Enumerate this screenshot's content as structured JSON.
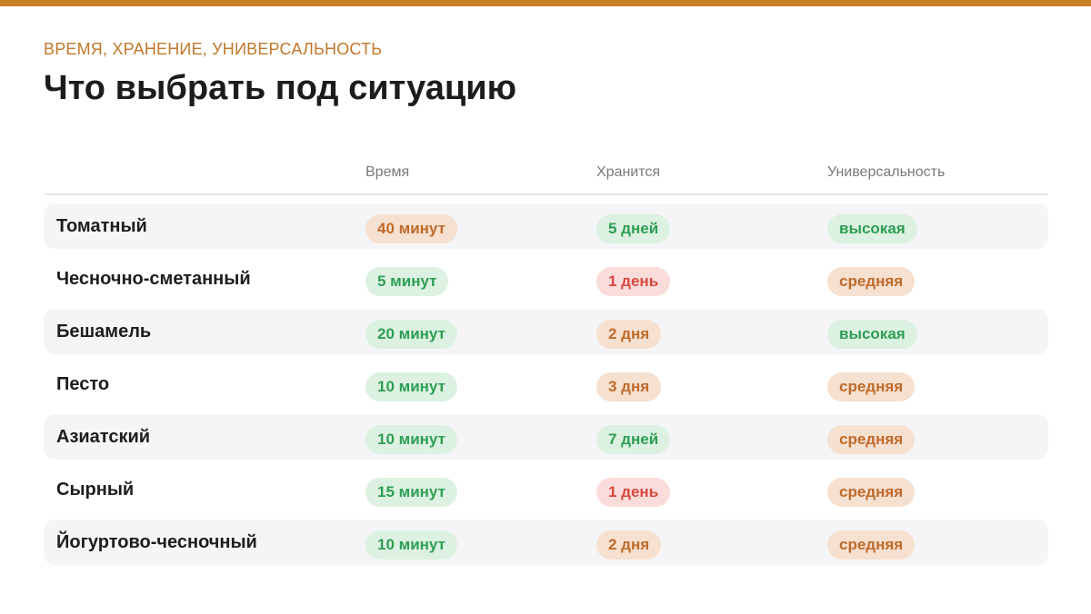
{
  "eyebrow": "ВРЕМЯ, ХРАНЕНИЕ, УНИВЕРСАЛЬНОСТЬ",
  "title": "Что выбрать под ситуацию",
  "columns": [
    "",
    "Время",
    "Хранится",
    "Универсальность"
  ],
  "colors": {
    "accent": "#c9802a",
    "green": "#2e9e54",
    "orange": "#bf6a2b",
    "red": "#d9483f"
  },
  "rows": [
    {
      "name": "Томатный",
      "time": "40 минут",
      "time_status": "orange",
      "storage": "5 дней",
      "storage_status": "green",
      "versatility": "высокая",
      "versatility_status": "green"
    },
    {
      "name": "Чесночно-сметанный",
      "time": "5 минут",
      "time_status": "green",
      "storage": "1 день",
      "storage_status": "red",
      "versatility": "средняя",
      "versatility_status": "orange"
    },
    {
      "name": "Бешамель",
      "time": "20 минут",
      "time_status": "green",
      "storage": "2 дня",
      "storage_status": "orange",
      "versatility": "высокая",
      "versatility_status": "green"
    },
    {
      "name": "Песто",
      "time": "10 минут",
      "time_status": "green",
      "storage": "3 дня",
      "storage_status": "orange",
      "versatility": "средняя",
      "versatility_status": "orange"
    },
    {
      "name": "Азиатский",
      "time": "10 минут",
      "time_status": "green",
      "storage": "7 дней",
      "storage_status": "green",
      "versatility": "средняя",
      "versatility_status": "orange"
    },
    {
      "name": "Сырный",
      "time": "15 минут",
      "time_status": "green",
      "storage": "1 день",
      "storage_status": "red",
      "versatility": "средняя",
      "versatility_status": "orange"
    },
    {
      "name": "Йогуртово-чесночный",
      "time": "10 минут",
      "time_status": "green",
      "storage": "2 дня",
      "storage_status": "orange",
      "versatility": "средняя",
      "versatility_status": "orange"
    }
  ]
}
